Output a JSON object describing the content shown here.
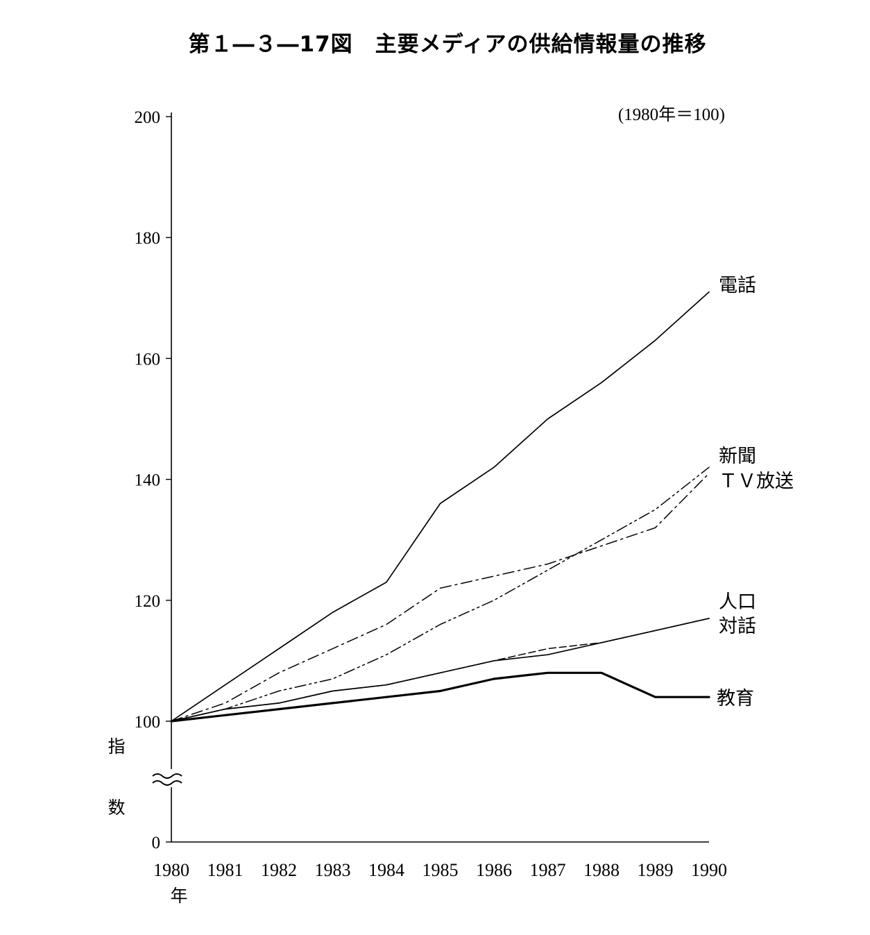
{
  "figure": {
    "title": "第１―３―17図　主要メディアの供給情報量の推移"
  },
  "chart_data": {
    "type": "line",
    "title": "第１―３―17図　主要メディアの供給情報量の推移",
    "note": "(1980年＝100)",
    "xlabel": "年",
    "ylabel": "指数",
    "x": [
      1980,
      1981,
      1982,
      1983,
      1984,
      1985,
      1986,
      1987,
      1988,
      1989,
      1990
    ],
    "x_tick_labels": [
      "1980",
      "1981",
      "1982",
      "1983",
      "1984",
      "1985",
      "1986",
      "1987",
      "1988",
      "1989",
      "1990"
    ],
    "y_tick_labels": [
      "0",
      "100",
      "120",
      "140",
      "160",
      "180",
      "200"
    ],
    "ylim": [
      100,
      200
    ],
    "y_axis_break": true,
    "grid": false,
    "legend": "labels at line ends",
    "series": [
      {
        "name": "電話",
        "style": "solid",
        "values": [
          100,
          106,
          112,
          118,
          123,
          136,
          142,
          150,
          156,
          163,
          171
        ]
      },
      {
        "name": "新聞",
        "style": "dash-dot",
        "values": [
          100,
          103,
          108,
          112,
          116,
          122,
          124,
          126,
          129,
          132,
          141
        ]
      },
      {
        "name": "TV放送",
        "style": "dash-dot-dot",
        "values": [
          100,
          102,
          105,
          107,
          111,
          116,
          120,
          125,
          130,
          135,
          142
        ]
      },
      {
        "name": "人口",
        "style": "solid",
        "values": [
          100,
          102,
          103,
          105,
          106,
          108,
          110,
          111,
          113,
          115,
          117
        ]
      },
      {
        "name": "対話",
        "style": "dashed",
        "values": [
          100,
          102,
          103,
          105,
          106,
          108,
          110,
          112,
          113,
          115,
          117
        ]
      },
      {
        "name": "教育",
        "style": "thick",
        "values": [
          100,
          101,
          102,
          103,
          104,
          105,
          107,
          108,
          108,
          104,
          104
        ]
      }
    ],
    "line_labels": [
      {
        "text": "電話",
        "series": [
          "電話"
        ]
      },
      {
        "text": "新聞",
        "series": [
          "新聞"
        ]
      },
      {
        "text": "ＴＶ放送",
        "series": [
          "TV放送"
        ]
      },
      {
        "text": "人口",
        "series": [
          "人口"
        ]
      },
      {
        "text": "対話",
        "series": [
          "対話"
        ]
      },
      {
        "text": "教育",
        "series": [
          "教育"
        ]
      }
    ]
  }
}
